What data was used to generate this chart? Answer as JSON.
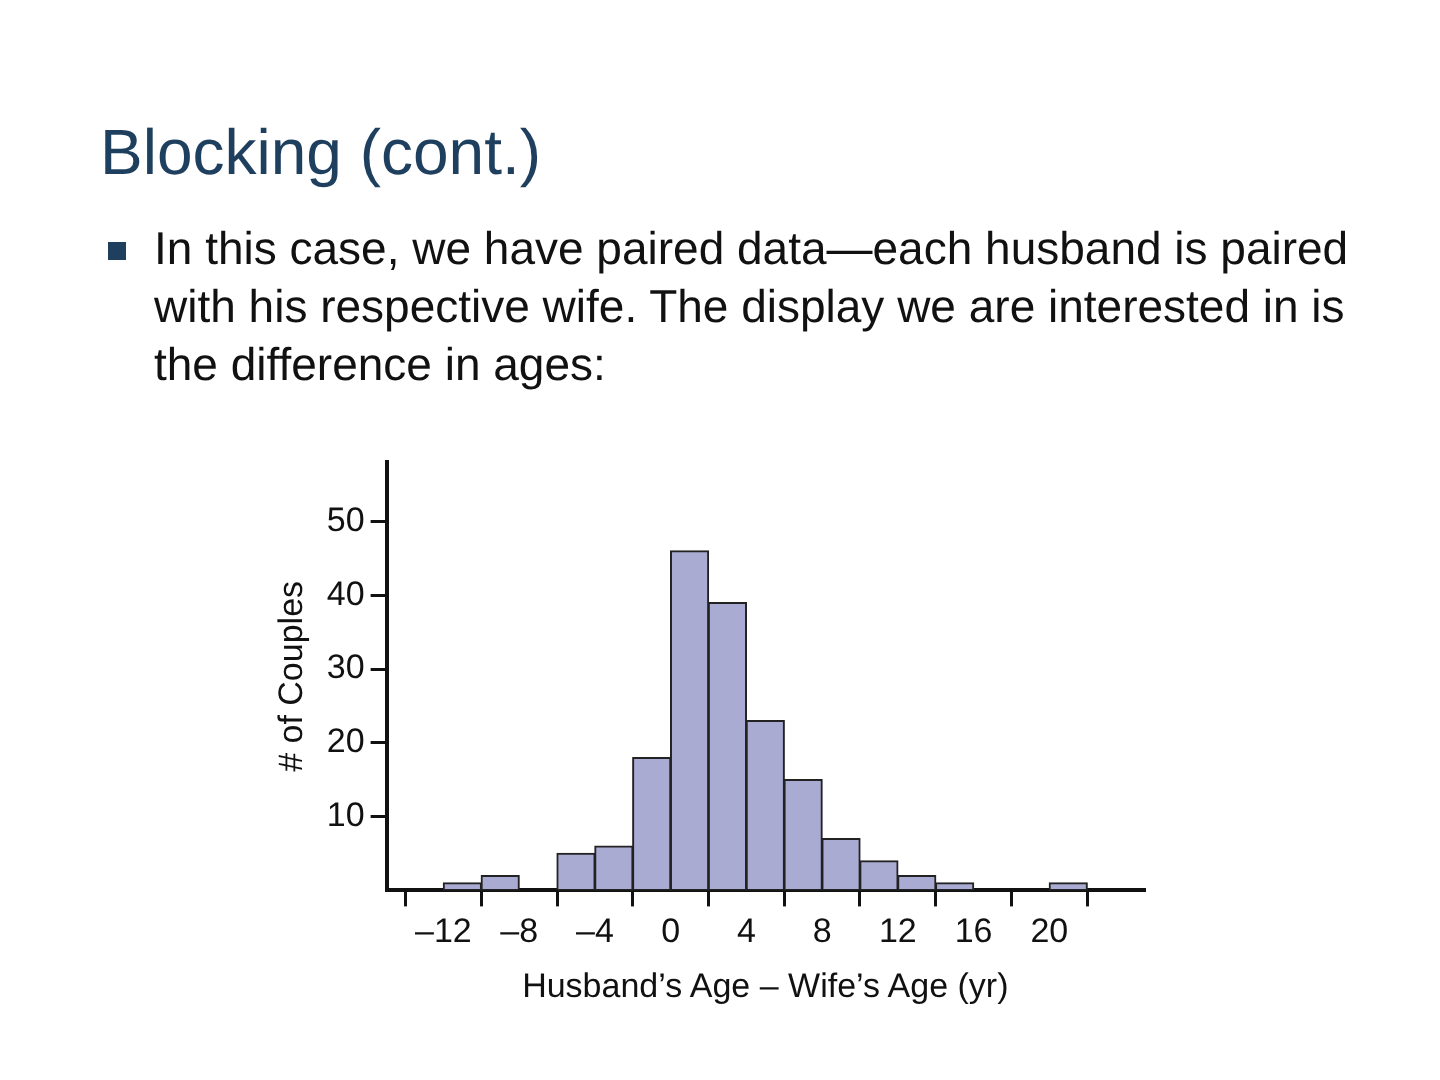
{
  "chart_data": {
    "type": "histogram",
    "title": "Blocking (cont.)",
    "subtitle": "In this case, we have paired data—each husband is paired with his respective wife. The display we are interested in is the difference in ages:",
    "xlabel": "Husband’s Age – Wife’s Age (yr)",
    "ylabel": "# of Couples",
    "bins": [
      -12,
      -10,
      -8,
      -6,
      -4,
      -2,
      0,
      2,
      4,
      6,
      8,
      10,
      12,
      14,
      16,
      18,
      20,
      22
    ],
    "values": [
      1,
      2,
      0,
      5,
      6,
      18,
      46,
      39,
      23,
      15,
      7,
      4,
      2,
      1,
      0,
      0,
      1
    ],
    "color": "#a9abd3",
    "xlim": [
      -15,
      25
    ],
    "xticks": [
      {
        "value": -12,
        "label": "–12"
      },
      {
        "value": -8,
        "label": "–8"
      },
      {
        "value": -4,
        "label": "–4"
      },
      0,
      4,
      8,
      12,
      16,
      20
    ],
    "ylim": [
      0,
      58
    ],
    "yticks": [
      10,
      20,
      30,
      40,
      50
    ],
    "grid": false,
    "legend": false
  }
}
